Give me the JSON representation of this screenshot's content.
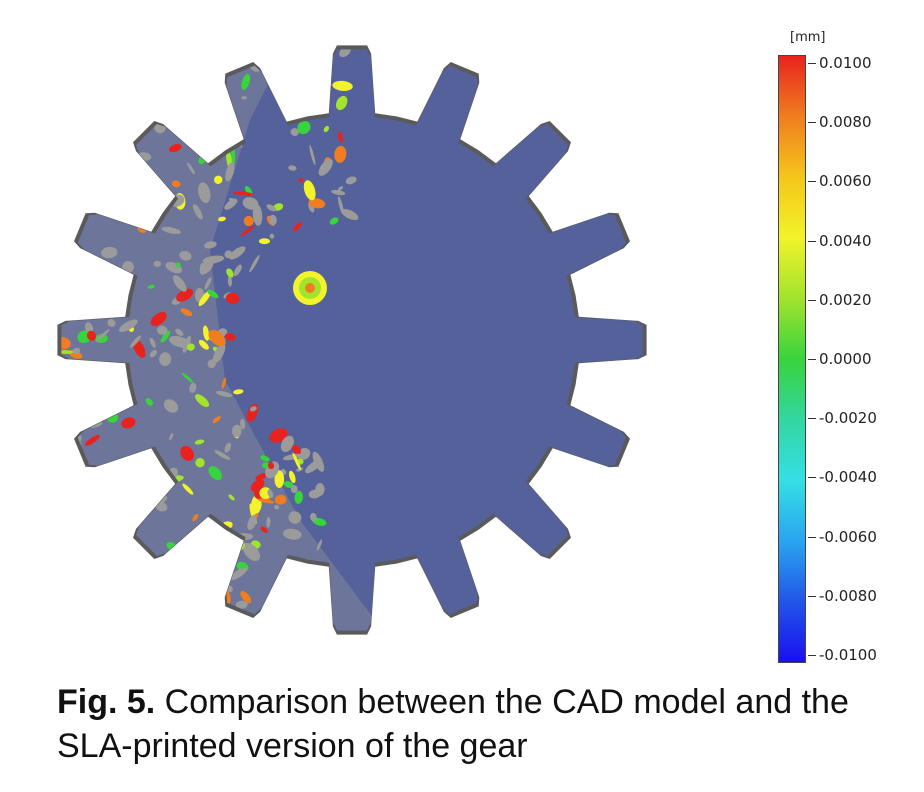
{
  "figure": {
    "colors": {
      "gear_base": "#55619a",
      "edge_gray": "#9b9b9b",
      "outline": "#5a5a5a"
    },
    "colorbar": {
      "unit": "[mm]",
      "labels": [
        "0.0100",
        "0.0080",
        "0.0060",
        "0.0040",
        "0.0020",
        "0.0000",
        "-0.0020",
        "-0.0040",
        "-0.0060",
        "-0.0080",
        "-0.0100"
      ],
      "colors": [
        "#e8231e",
        "#f07d1f",
        "#f5c61b",
        "#f2f32a",
        "#a2e32e",
        "#38d43c",
        "#33d6a0",
        "#35dfe6",
        "#2aa5f0",
        "#2156e8",
        "#1a10f0"
      ]
    }
  },
  "caption": {
    "label": "Fig. 5.",
    "text": " Comparison between the CAD model and the SLA-printed version of the gear"
  }
}
